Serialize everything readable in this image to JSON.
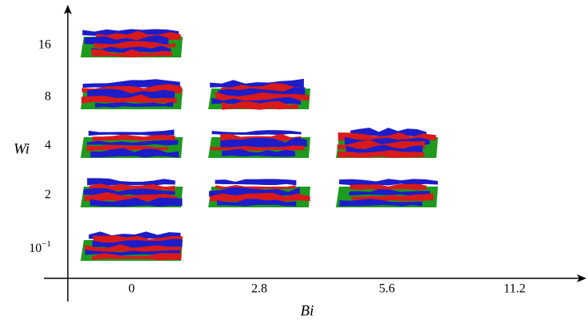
{
  "y_axis": {
    "label": "Wi",
    "ticks": [
      {
        "text": "16"
      },
      {
        "text": "8"
      },
      {
        "text": "4"
      },
      {
        "text": "2"
      },
      {
        "text": "10",
        "exponent": "−1"
      }
    ]
  },
  "x_axis": {
    "label": "Bi",
    "ticks": [
      "0",
      "2.8",
      "5.6",
      "11.2"
    ]
  }
}
